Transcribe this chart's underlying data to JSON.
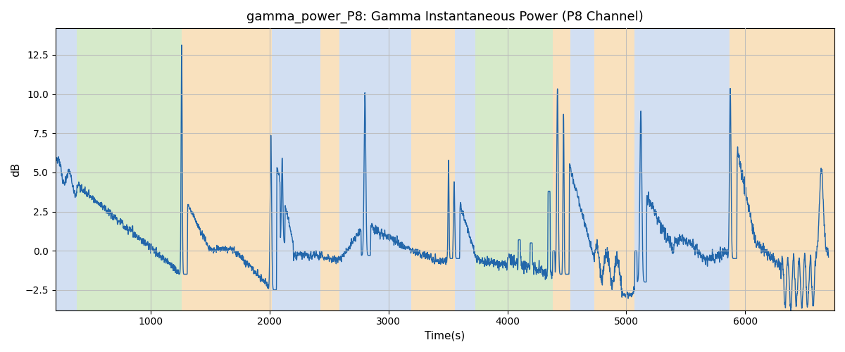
{
  "title": "gamma_power_P8: Gamma Instantaneous Power (P8 Channel)",
  "xlabel": "Time(s)",
  "ylabel": "dB",
  "xlim": [
    200,
    6750
  ],
  "ylim": [
    -3.8,
    14.2
  ],
  "line_color": "#2266aa",
  "line_width": 1.0,
  "background_color": "#ffffff",
  "grid_color": "#bbbbbb",
  "figsize": [
    12.0,
    5.0
  ],
  "dpi": 100,
  "yticks": [
    -2.5,
    0.0,
    2.5,
    5.0,
    7.5,
    10.0,
    12.5
  ],
  "xticks": [
    1000,
    2000,
    3000,
    4000,
    5000,
    6000
  ],
  "bg_bands": [
    {
      "xmin": 200,
      "xmax": 380,
      "color": "#aec6e8",
      "alpha": 0.55
    },
    {
      "xmin": 380,
      "xmax": 1260,
      "color": "#b5d9a0",
      "alpha": 0.55
    },
    {
      "xmin": 1260,
      "xmax": 2020,
      "color": "#f5c98a",
      "alpha": 0.55
    },
    {
      "xmin": 2020,
      "xmax": 2430,
      "color": "#aec6e8",
      "alpha": 0.55
    },
    {
      "xmin": 2430,
      "xmax": 2590,
      "color": "#f5c98a",
      "alpha": 0.55
    },
    {
      "xmin": 2590,
      "xmax": 3190,
      "color": "#aec6e8",
      "alpha": 0.55
    },
    {
      "xmin": 3190,
      "xmax": 3560,
      "color": "#f5c98a",
      "alpha": 0.55
    },
    {
      "xmin": 3560,
      "xmax": 3730,
      "color": "#aec6e8",
      "alpha": 0.55
    },
    {
      "xmin": 3730,
      "xmax": 4380,
      "color": "#b5d9a0",
      "alpha": 0.55
    },
    {
      "xmin": 4380,
      "xmax": 4530,
      "color": "#f5c98a",
      "alpha": 0.55
    },
    {
      "xmin": 4530,
      "xmax": 4730,
      "color": "#aec6e8",
      "alpha": 0.55
    },
    {
      "xmin": 4730,
      "xmax": 5070,
      "color": "#f5c98a",
      "alpha": 0.55
    },
    {
      "xmin": 5070,
      "xmax": 5870,
      "color": "#aec6e8",
      "alpha": 0.55
    },
    {
      "xmin": 5870,
      "xmax": 6090,
      "color": "#f5c98a",
      "alpha": 0.55
    },
    {
      "xmin": 6090,
      "xmax": 6750,
      "color": "#f5c98a",
      "alpha": 0.55
    }
  ]
}
